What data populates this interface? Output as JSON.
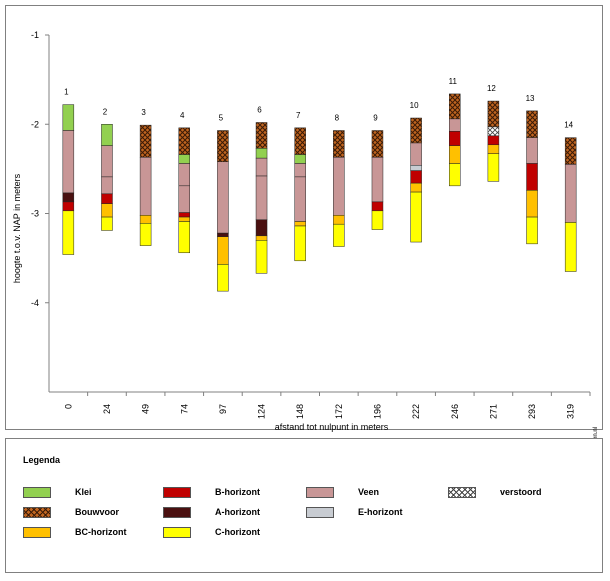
{
  "chart_data": {
    "type": "bar",
    "subtype": "stacked-floating-soil-profile",
    "ylabel": "hoogte t.o.v. NAP in meters",
    "xlabel": "afstand tot nulpunt in meters",
    "ylim": [
      -5.0,
      -1.0
    ],
    "yticks": [
      -1,
      -2,
      -3,
      -4
    ],
    "grid": false,
    "watermark": "www.boorstaten.nl",
    "categories": [
      "0",
      "24",
      "49",
      "74",
      "97",
      "124",
      "148",
      "172",
      "196",
      "222",
      "246",
      "271",
      "293",
      "319"
    ],
    "columns": [
      {
        "number": "1",
        "x": "0",
        "layers": [
          {
            "type": "klei",
            "top": -1.78,
            "bottom": -2.07
          },
          {
            "type": "veen",
            "top": -2.07,
            "bottom": -2.77
          },
          {
            "type": "a",
            "top": -2.77,
            "bottom": -2.87
          },
          {
            "type": "b",
            "top": -2.87,
            "bottom": -2.97
          },
          {
            "type": "c",
            "top": -2.97,
            "bottom": -3.46
          }
        ]
      },
      {
        "number": "2",
        "x": "24",
        "layers": [
          {
            "type": "klei",
            "top": -2.0,
            "bottom": -2.24
          },
          {
            "type": "veen",
            "top": -2.24,
            "bottom": -2.59
          },
          {
            "type": "veen",
            "top": -2.59,
            "bottom": -2.78
          },
          {
            "type": "b",
            "top": -2.78,
            "bottom": -2.89
          },
          {
            "type": "bc",
            "top": -2.89,
            "bottom": -3.04
          },
          {
            "type": "c",
            "top": -3.04,
            "bottom": -3.19
          }
        ]
      },
      {
        "number": "3",
        "x": "49",
        "layers": [
          {
            "type": "bouwvoor",
            "top": -2.01,
            "bottom": -2.37
          },
          {
            "type": "veen",
            "top": -2.37,
            "bottom": -3.02
          },
          {
            "type": "bc",
            "top": -3.02,
            "bottom": -3.11
          },
          {
            "type": "c",
            "top": -3.11,
            "bottom": -3.36
          }
        ]
      },
      {
        "number": "4",
        "x": "74",
        "layers": [
          {
            "type": "bouwvoor",
            "top": -2.04,
            "bottom": -2.34
          },
          {
            "type": "klei",
            "top": -2.34,
            "bottom": -2.44
          },
          {
            "type": "veen",
            "top": -2.44,
            "bottom": -2.69
          },
          {
            "type": "veen",
            "top": -2.69,
            "bottom": -2.99
          },
          {
            "type": "b",
            "top": -2.99,
            "bottom": -3.04
          },
          {
            "type": "bc",
            "top": -3.04,
            "bottom": -3.09
          },
          {
            "type": "c",
            "top": -3.09,
            "bottom": -3.44
          }
        ]
      },
      {
        "number": "5",
        "x": "97",
        "layers": [
          {
            "type": "bouwvoor",
            "top": -2.07,
            "bottom": -2.42
          },
          {
            "type": "veen",
            "top": -2.42,
            "bottom": -3.22
          },
          {
            "type": "a",
            "top": -3.22,
            "bottom": -3.26
          },
          {
            "type": "bc",
            "top": -3.26,
            "bottom": -3.57
          },
          {
            "type": "c",
            "top": -3.57,
            "bottom": -3.87
          }
        ]
      },
      {
        "number": "6",
        "x": "124",
        "layers": [
          {
            "type": "bouwvoor",
            "top": -1.98,
            "bottom": -2.27
          },
          {
            "type": "klei",
            "top": -2.27,
            "bottom": -2.38
          },
          {
            "type": "veen",
            "top": -2.38,
            "bottom": -2.58
          },
          {
            "type": "veen",
            "top": -2.58,
            "bottom": -3.07
          },
          {
            "type": "a",
            "top": -3.07,
            "bottom": -3.25
          },
          {
            "type": "bc",
            "top": -3.25,
            "bottom": -3.3
          },
          {
            "type": "c",
            "top": -3.3,
            "bottom": -3.67
          }
        ]
      },
      {
        "number": "7",
        "x": "148",
        "layers": [
          {
            "type": "bouwvoor",
            "top": -2.04,
            "bottom": -2.34
          },
          {
            "type": "klei",
            "top": -2.34,
            "bottom": -2.44
          },
          {
            "type": "veen",
            "top": -2.44,
            "bottom": -2.59
          },
          {
            "type": "veen",
            "top": -2.59,
            "bottom": -3.09
          },
          {
            "type": "bc",
            "top": -3.09,
            "bottom": -3.14
          },
          {
            "type": "c",
            "top": -3.14,
            "bottom": -3.53
          }
        ]
      },
      {
        "number": "8",
        "x": "172",
        "layers": [
          {
            "type": "bouwvoor",
            "top": -2.07,
            "bottom": -2.37
          },
          {
            "type": "veen",
            "top": -2.37,
            "bottom": -3.02
          },
          {
            "type": "bc",
            "top": -3.02,
            "bottom": -3.12
          },
          {
            "type": "c",
            "top": -3.12,
            "bottom": -3.37
          }
        ]
      },
      {
        "number": "9",
        "x": "196",
        "layers": [
          {
            "type": "bouwvoor",
            "top": -2.07,
            "bottom": -2.37
          },
          {
            "type": "veen",
            "top": -2.37,
            "bottom": -2.87
          },
          {
            "type": "b",
            "top": -2.87,
            "bottom": -2.97
          },
          {
            "type": "c",
            "top": -2.97,
            "bottom": -3.18
          }
        ]
      },
      {
        "number": "10",
        "x": "222",
        "layers": [
          {
            "type": "bouwvoor",
            "top": -1.93,
            "bottom": -2.21
          },
          {
            "type": "veen",
            "top": -2.21,
            "bottom": -2.46
          },
          {
            "type": "e",
            "top": -2.46,
            "bottom": -2.52
          },
          {
            "type": "b",
            "top": -2.52,
            "bottom": -2.66
          },
          {
            "type": "bc",
            "top": -2.66,
            "bottom": -2.76
          },
          {
            "type": "c",
            "top": -2.76,
            "bottom": -3.32
          }
        ]
      },
      {
        "number": "11",
        "x": "246",
        "layers": [
          {
            "type": "bouwvoor",
            "top": -1.66,
            "bottom": -1.94
          },
          {
            "type": "veen",
            "top": -1.94,
            "bottom": -2.08
          },
          {
            "type": "b",
            "top": -2.08,
            "bottom": -2.24
          },
          {
            "type": "bc",
            "top": -2.24,
            "bottom": -2.44
          },
          {
            "type": "c",
            "top": -2.44,
            "bottom": -2.69
          }
        ]
      },
      {
        "number": "12",
        "x": "271",
        "layers": [
          {
            "type": "bouwvoor",
            "top": -1.74,
            "bottom": -2.03
          },
          {
            "type": "verstoord",
            "top": -2.03,
            "bottom": -2.13
          },
          {
            "type": "b",
            "top": -2.13,
            "bottom": -2.23
          },
          {
            "type": "bc",
            "top": -2.23,
            "bottom": -2.33
          },
          {
            "type": "c",
            "top": -2.33,
            "bottom": -2.64
          }
        ]
      },
      {
        "number": "13",
        "x": "293",
        "layers": [
          {
            "type": "bouwvoor",
            "top": -1.85,
            "bottom": -2.15
          },
          {
            "type": "veen",
            "top": -2.15,
            "bottom": -2.44
          },
          {
            "type": "b",
            "top": -2.44,
            "bottom": -2.74
          },
          {
            "type": "bc",
            "top": -2.74,
            "bottom": -3.04
          },
          {
            "type": "c",
            "top": -3.04,
            "bottom": -3.34
          }
        ]
      },
      {
        "number": "14",
        "x": "319",
        "layers": [
          {
            "type": "bouwvoor",
            "top": -2.15,
            "bottom": -2.45
          },
          {
            "type": "veen",
            "top": -2.45,
            "bottom": -3.1
          },
          {
            "type": "c",
            "top": -3.1,
            "bottom": -3.65
          }
        ]
      }
    ]
  },
  "layer_types": {
    "klei": {
      "fill": "#92d050"
    },
    "bouwvoor": {
      "fill": "#c0651f",
      "pattern": "crosshatch"
    },
    "bc": {
      "fill": "#ffc000"
    },
    "b": {
      "fill": "#c00000"
    },
    "a": {
      "fill": "#4a1010"
    },
    "c": {
      "fill": "#ffff00"
    },
    "veen": {
      "fill": "#c89696"
    },
    "e": {
      "fill": "#c8ccd2"
    },
    "verstoord": {
      "fill": "#ffffff",
      "pattern": "crosshatch-light"
    }
  },
  "legend": {
    "title": "Legenda",
    "items": [
      {
        "key": "klei",
        "label": "Klei"
      },
      {
        "key": "bouwvoor",
        "label": "Bouwvoor"
      },
      {
        "key": "bc",
        "label": "BC-horizont"
      },
      {
        "key": "b",
        "label": "B-horizont"
      },
      {
        "key": "a",
        "label": "A-horizont"
      },
      {
        "key": "c",
        "label": "C-horizont"
      },
      {
        "key": "veen",
        "label": "Veen"
      },
      {
        "key": "e",
        "label": "E-horizont"
      },
      {
        "key": "verstoord",
        "label": "verstoord"
      }
    ]
  }
}
